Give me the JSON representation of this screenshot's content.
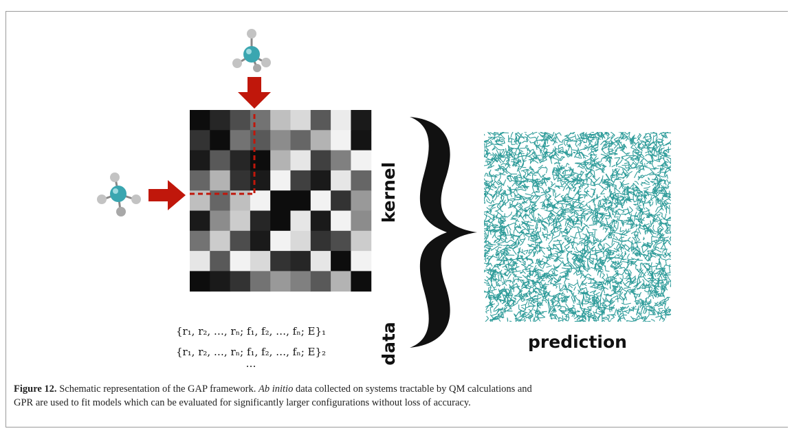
{
  "figure": {
    "label": "Figure 12.",
    "caption_lines": [
      "Schematic representation of the GAP framework. Ab initio data collected on systems tractable by QM calculations and",
      "GPR are used to fit models which can be evaluated for significantly larger configurations without loss of accuracy."
    ],
    "caption_italic": "Ab initio",
    "kernel_label": "kernel",
    "data_label": "data",
    "prediction_label": "prediction",
    "data_rows": [
      "{r₁, r₂, …, rₙ; f₁, f₂, …, fₙ; E}₁",
      "{r₁, r₂, …, rₙ; f₁, f₂, …, fₙ; E}₂",
      "…"
    ]
  },
  "kernel_matrix": [
    [
      0.05,
      0.15,
      0.3,
      0.45,
      0.75,
      0.85,
      0.35,
      0.92,
      0.1
    ],
    [
      0.2,
      0.05,
      0.45,
      0.35,
      0.55,
      0.4,
      0.7,
      0.95,
      0.08
    ],
    [
      0.1,
      0.35,
      0.15,
      0.05,
      0.7,
      0.9,
      0.25,
      0.5,
      0.95
    ],
    [
      0.4,
      0.7,
      0.2,
      0.1,
      0.95,
      0.25,
      0.1,
      0.9,
      0.4
    ],
    [
      0.75,
      0.4,
      0.75,
      0.95,
      0.05,
      0.05,
      0.95,
      0.2,
      0.6
    ],
    [
      0.1,
      0.55,
      0.8,
      0.15,
      0.05,
      0.9,
      0.1,
      0.95,
      0.55
    ],
    [
      0.45,
      0.8,
      0.3,
      0.1,
      0.95,
      0.85,
      0.2,
      0.3,
      0.8
    ],
    [
      0.9,
      0.35,
      0.95,
      0.85,
      0.2,
      0.15,
      0.9,
      0.05,
      0.95
    ],
    [
      0.05,
      0.1,
      0.2,
      0.45,
      0.6,
      0.5,
      0.35,
      0.7,
      0.05
    ]
  ],
  "colors": {
    "arrow": "#c0170b",
    "dashed": "#c0170b",
    "network": "#2f9c9a",
    "atom_center": "#3aa6b0",
    "atom_h": "#bdbdbd",
    "bond": "#888888"
  }
}
